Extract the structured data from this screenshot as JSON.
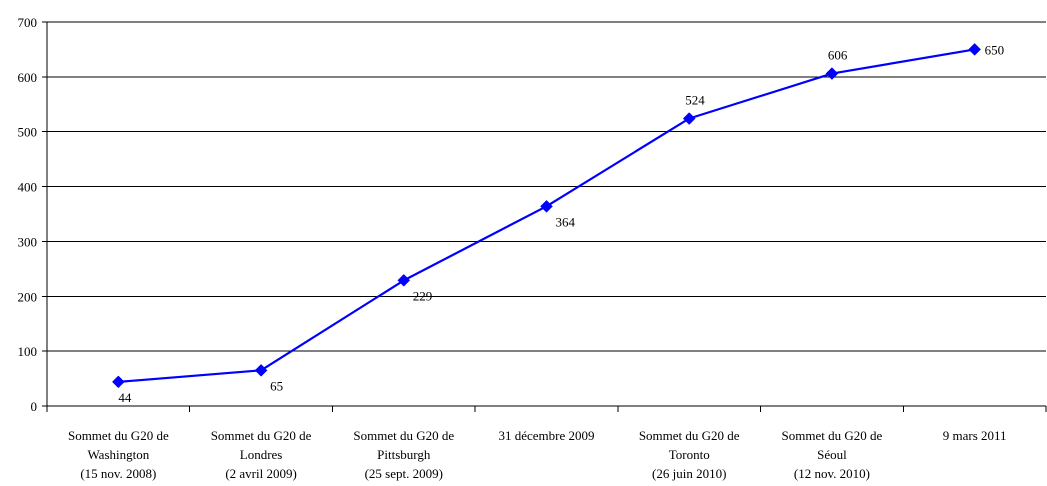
{
  "chart_data": {
    "type": "line",
    "title": "",
    "xlabel": "",
    "ylabel": "",
    "ylim": [
      0,
      700
    ],
    "yticks": [
      0,
      100,
      200,
      300,
      400,
      500,
      600,
      700
    ],
    "grid": true,
    "legend": "none",
    "categories": [
      [
        "Sommet du G20 de",
        "Washington",
        "(15 nov. 2008)"
      ],
      [
        "Sommet du G20 de",
        "Londres",
        "(2 avril 2009)"
      ],
      [
        "Sommet du G20 de",
        "Pittsburgh",
        "(25 sept. 2009)"
      ],
      [
        "31 décembre 2009"
      ],
      [
        "Sommet du G20 de",
        "Toronto",
        "(26 juin 2010)"
      ],
      [
        "Sommet du G20 de",
        "Séoul",
        "(12 nov. 2010)"
      ],
      [
        "9 mars 2011"
      ]
    ],
    "series": [
      {
        "color": "#0000ff",
        "marker": "diamond",
        "values": [
          44,
          65,
          229,
          364,
          524,
          606,
          650
        ]
      }
    ]
  }
}
